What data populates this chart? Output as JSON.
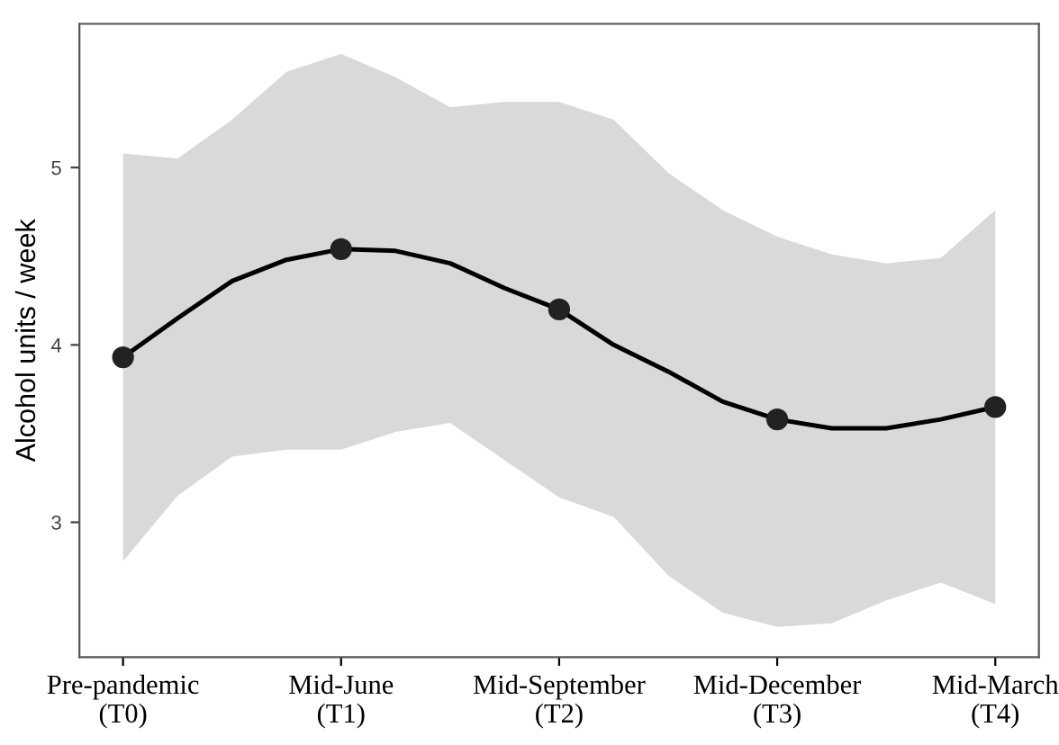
{
  "chart_data": {
    "type": "line",
    "ylabel": "Alcohol units / week",
    "categories": [
      "Pre-pandemic\n(T0)",
      null,
      null,
      null,
      "Mid-June\n(T1)",
      null,
      null,
      null,
      "Mid-September\n(T2)",
      null,
      null,
      null,
      "Mid-December\n(T3)",
      null,
      null,
      null,
      "Mid-March\n(T4)"
    ],
    "series": [
      {
        "color": "#000000",
        "marker": "none",
        "values": [
          3.93,
          4.15,
          4.36,
          4.48,
          4.54,
          4.53,
          4.46,
          4.32,
          4.2,
          4.0,
          3.85,
          3.68,
          3.58,
          3.53,
          3.53,
          3.58,
          3.65
        ],
        "lower": [
          2.78,
          3.15,
          3.37,
          3.41,
          3.41,
          3.51,
          3.56,
          3.35,
          3.14,
          3.03,
          2.7,
          2.49,
          2.41,
          2.43,
          2.56,
          2.66,
          2.54
        ],
        "upper": [
          5.08,
          5.05,
          5.27,
          5.54,
          5.64,
          5.51,
          5.34,
          5.37,
          5.37,
          5.27,
          4.97,
          4.76,
          4.61,
          4.51,
          4.46,
          4.49,
          4.76
        ]
      },
      {
        "type": "scatter",
        "color": "#222222",
        "marker": "circle",
        "values": [
          3.93,
          null,
          null,
          null,
          4.54,
          null,
          null,
          null,
          4.2,
          null,
          null,
          null,
          3.58,
          null,
          null,
          null,
          3.65
        ]
      }
    ],
    "ylim": [
      2.24,
      5.81
    ],
    "yticks": [
      3,
      4,
      5
    ],
    "grid": false,
    "legend": false,
    "line_style": "solid"
  }
}
